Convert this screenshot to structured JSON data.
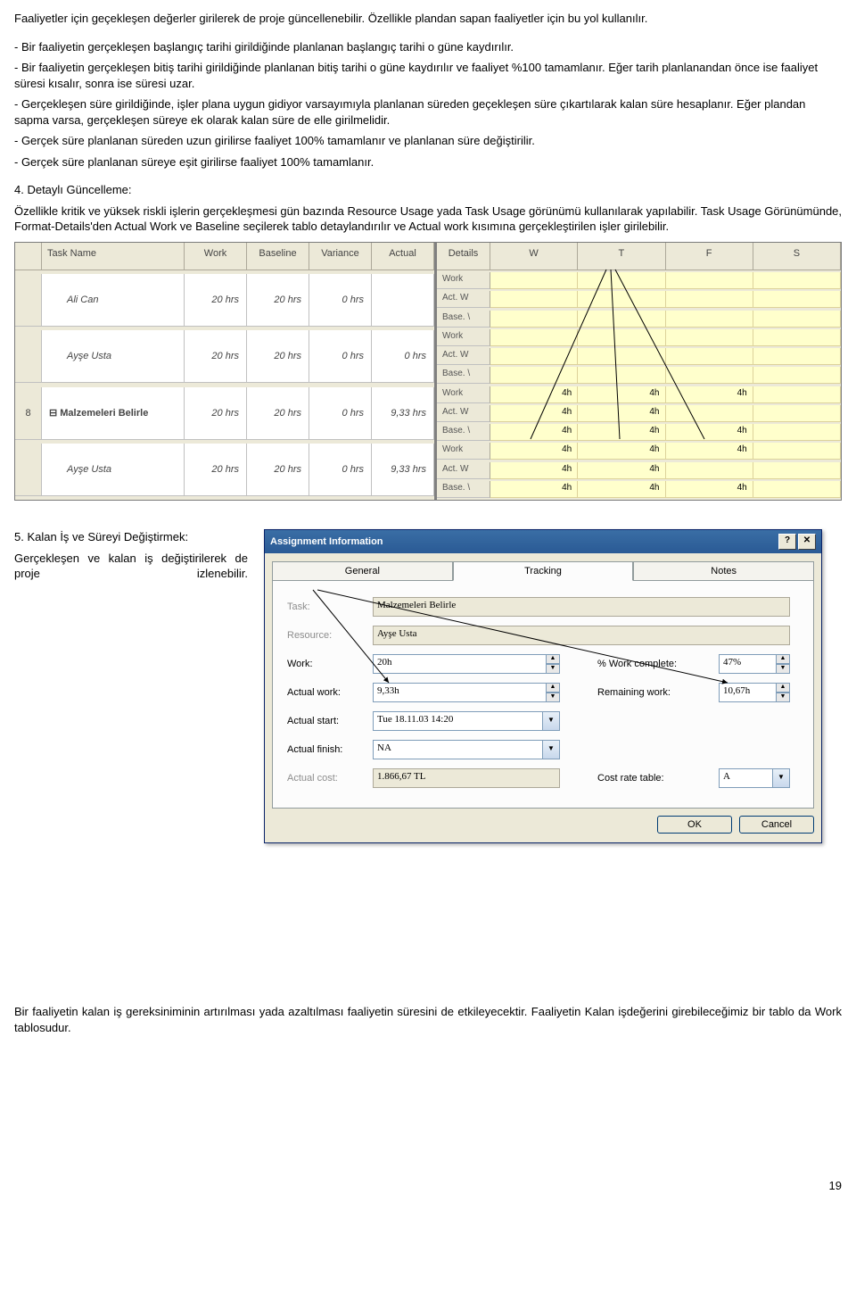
{
  "paragraphs": {
    "p1": "Faaliyetler için geçekleşen değerler girilerek de proje güncellenebilir. Özellikle plandan sapan faaliyetler için bu yol kullanılır.",
    "p2": "- Bir faaliyetin gerçekleşen başlangıç tarihi girildiğinde planlanan başlangıç tarihi o güne kaydırılır.",
    "p3": "- Bir faaliyetin gerçekleşen bitiş tarihi girildiğinde planlanan bitiş tarihi o güne kaydırılır ve faaliyet %100 tamamlanır. Eğer tarih planlanandan önce ise faaliyet süresi kısalır, sonra ise süresi uzar.",
    "p4": "- Gerçekleşen süre girildiğinde, işler plana uygun gidiyor varsayımıyla planlanan süreden geçekleşen süre çıkartılarak kalan süre hesaplanır. Eğer plandan sapma varsa, gerçekleşen süreye ek olarak kalan süre de elle girilmelidir.",
    "p5": "- Gerçek süre planlanan süreden uzun girilirse faaliyet 100% tamamlanır ve planlanan süre değiştirilir.",
    "p6": "- Gerçek süre planlanan süreye eşit girilirse faaliyet 100% tamamlanır.",
    "s4title": "4. Detaylı Güncelleme:",
    "s4body": "Özellikle kritik ve yüksek riskli işlerin gerçekleşmesi gün bazında Resource Usage yada Task Usage görünümü kullanılarak yapılabilir. Task Usage Görünümünde, Format-Details'den Actual Work ve Baseline seçilerek tablo detaylandırılır ve Actual work kısımına gerçekleştirilen işler girilebilir.",
    "s5title": "5. Kalan İş ve Süreyi Değiştirmek:",
    "s5body": "Gerçekleşen ve kalan iş değiştirilerek de proje izlenebilir.",
    "footer": "Bir faaliyetin kalan iş gereksiniminin artırılması yada azaltılması faaliyetin süresini de etkileyecektir. Faaliyetin Kalan işdeğerini girebileceğimiz bir tablo da Work tablosudur.",
    "pagenum": "19"
  },
  "taskUsage": {
    "leftHeaders": [
      "",
      "Task Name",
      "Work",
      "Baseline",
      "Variance",
      "Actual"
    ],
    "rightHeaders": [
      "Details",
      "W",
      "T",
      "F",
      "S"
    ],
    "detailLabels": [
      "Work",
      "Act. W",
      "Base. \\"
    ],
    "rows": [
      {
        "id": "",
        "name": "Ali Can",
        "parent": false,
        "work": "20 hrs",
        "baseline": "20 hrs",
        "variance": "0 hrs",
        "actual": "",
        "details": [
          [
            "",
            "",
            "",
            ""
          ],
          [
            "",
            "",
            "",
            ""
          ],
          [
            "",
            "",
            "",
            ""
          ]
        ]
      },
      {
        "id": "",
        "name": "Ayşe Usta",
        "parent": false,
        "work": "20 hrs",
        "baseline": "20 hrs",
        "variance": "0 hrs",
        "actual": "0 hrs",
        "details": [
          [
            "",
            "",
            "",
            ""
          ],
          [
            "",
            "",
            "",
            ""
          ],
          [
            "",
            "",
            "",
            ""
          ]
        ]
      },
      {
        "id": "8",
        "name": "⊟ Malzemeleri Belirle",
        "parent": true,
        "work": "20 hrs",
        "baseline": "20 hrs",
        "variance": "0 hrs",
        "actual": "9,33 hrs",
        "details": [
          [
            "4h",
            "4h",
            "4h",
            ""
          ],
          [
            "4h",
            "4h",
            "",
            ""
          ],
          [
            "4h",
            "4h",
            "4h",
            ""
          ]
        ]
      },
      {
        "id": "",
        "name": "Ayşe Usta",
        "parent": false,
        "work": "20 hrs",
        "baseline": "20 hrs",
        "variance": "0 hrs",
        "actual": "9,33 hrs",
        "details": [
          [
            "4h",
            "4h",
            "4h",
            ""
          ],
          [
            "4h",
            "4h",
            "",
            ""
          ],
          [
            "4h",
            "4h",
            "4h",
            ""
          ]
        ]
      }
    ],
    "lines": {
      "stroke": "#000",
      "strokeWidth": 1
    }
  },
  "dialog": {
    "title": "Assignment Information",
    "tabs": [
      "General",
      "Tracking",
      "Notes"
    ],
    "activeTab": 1,
    "labels": {
      "task": "Task:",
      "resource": "Resource:",
      "work": "Work:",
      "actualWork": "Actual work:",
      "actualStart": "Actual start:",
      "actualFinish": "Actual finish:",
      "actualCost": "Actual cost:",
      "pctWork": "% Work complete:",
      "remWork": "Remaining work:",
      "costRate": "Cost rate table:"
    },
    "values": {
      "task": "Malzemeleri Belirle",
      "resource": "Ayşe Usta",
      "work": "20h",
      "actualWork": "9,33h",
      "actualStart": "Tue 18.11.03 14:20",
      "actualFinish": "NA",
      "actualCost": "1.866,67 TL",
      "pctWork": "47%",
      "remWork": "10,67h",
      "costRate": "A"
    },
    "buttons": {
      "ok": "OK",
      "cancel": "Cancel"
    }
  }
}
